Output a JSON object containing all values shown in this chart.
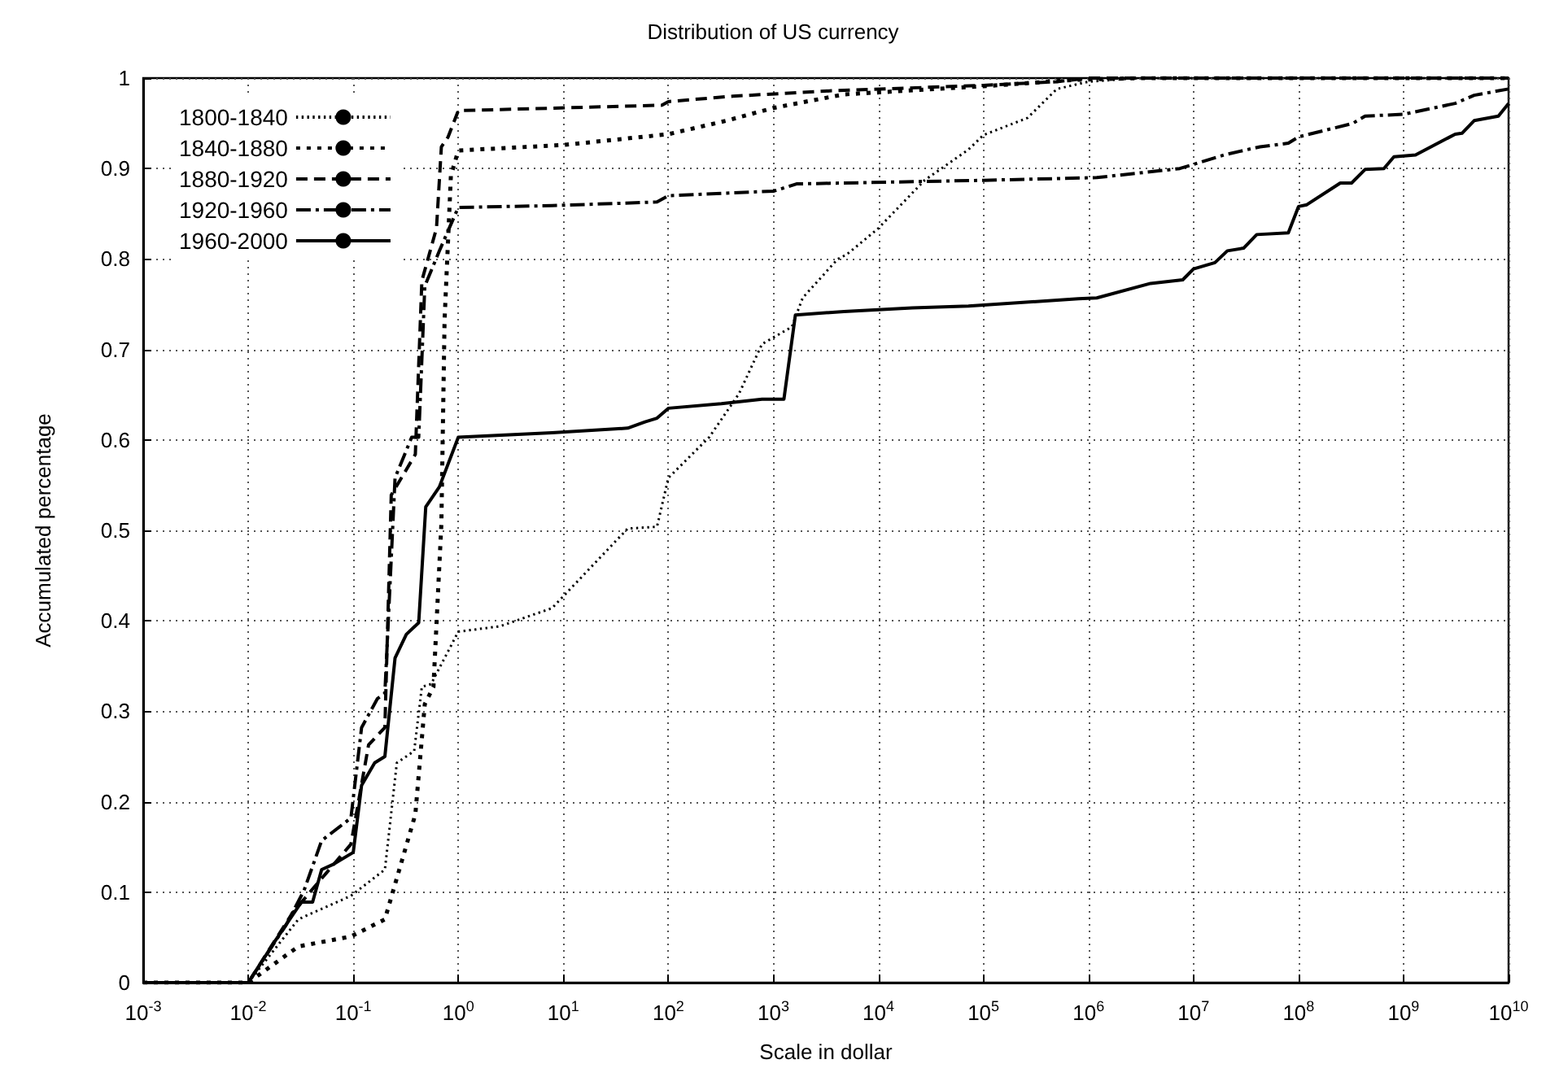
{
  "chart_data": {
    "type": "line",
    "title": "Distribution of US currency",
    "xlabel": "Scale in dollar",
    "ylabel": "Accumulated percentage",
    "log": "x",
    "grid": true,
    "legend": "top left",
    "marker": "none",
    "xlim": [
      0.001,
      10000000000
    ],
    "ylim": [
      0,
      1
    ],
    "xticks": [
      {
        "value": 0.001,
        "label": "10$^{-3}$"
      },
      {
        "value": 0.01,
        "label": "10$^{-2}$"
      },
      {
        "value": 0.1,
        "label": "10$^{-1}$"
      },
      {
        "value": 1,
        "label": "10$^{0}$"
      },
      {
        "value": 10,
        "label": "10$^{1}$"
      },
      {
        "value": 100,
        "label": "10$^{2}$"
      },
      {
        "value": 1000,
        "label": "10$^{3}$"
      },
      {
        "value": 10000,
        "label": "10$^{4}$"
      },
      {
        "value": 100000,
        "label": "10$^{5}$"
      },
      {
        "value": 1000000,
        "label": "10$^{6}$"
      },
      {
        "value": 10000000,
        "label": "10$^{7}$"
      },
      {
        "value": 100000000,
        "label": "10$^{8}$"
      },
      {
        "value": 1000000000,
        "label": "10$^{9}$"
      },
      {
        "value": 10000000000,
        "label": "10$^{10}$"
      }
    ],
    "yticks": [
      0,
      0.1,
      0.2,
      0.3,
      0.4,
      0.5,
      0.6,
      0.7,
      0.8,
      0.9,
      1
    ],
    "series": [
      {
        "name": "1800-1840",
        "color": "#000000",
        "line_style": "dotted",
        "x": [
          0.001,
          0.01,
          0.03,
          0.095,
          0.2,
          0.26,
          0.38,
          0.45,
          0.55,
          1.0,
          2.5,
          7.8,
          41,
          78,
          100,
          245,
          470,
          780,
          1500,
          1900,
          4100,
          5000,
          10000,
          27500,
          72000,
          100000,
          263000,
          500000,
          1000000,
          3000000,
          10000000000
        ],
        "values": [
          0,
          0,
          0.07,
          0.096,
          0.125,
          0.243,
          0.256,
          0.327,
          0.33,
          0.388,
          0.394,
          0.414,
          0.502,
          0.504,
          0.558,
          0.603,
          0.651,
          0.706,
          0.725,
          0.757,
          0.8,
          0.805,
          0.834,
          0.887,
          0.921,
          0.937,
          0.956,
          0.988,
          0.996,
          1,
          1
        ]
      },
      {
        "name": "1840-1880",
        "color": "#000000",
        "line_style": "loosely dotted",
        "x": [
          0.001,
          0.01,
          0.03,
          0.095,
          0.2,
          0.39,
          0.48,
          0.58,
          0.69,
          0.74,
          0.85,
          1,
          10,
          100,
          360,
          1000,
          4700,
          100000,
          720000,
          3000000,
          10000000000
        ],
        "values": [
          0,
          0,
          0.04,
          0.051,
          0.07,
          0.186,
          0.308,
          0.327,
          0.507,
          0.732,
          0.892,
          0.92,
          0.926,
          0.938,
          0.953,
          0.967,
          0.982,
          0.991,
          0.998,
          1,
          1
        ]
      },
      {
        "name": "1880-1920",
        "color": "#000000",
        "line_style": "dashed",
        "x": [
          0.001,
          0.01,
          0.026,
          0.04,
          0.095,
          0.14,
          0.2,
          0.23,
          0.39,
          0.45,
          0.62,
          0.69,
          0.8,
          1,
          87,
          100,
          410,
          3600,
          100000,
          500000,
          1000000,
          10000000000
        ],
        "values": [
          0,
          0,
          0.076,
          0.102,
          0.153,
          0.263,
          0.282,
          0.539,
          0.584,
          0.776,
          0.834,
          0.924,
          0.935,
          0.964,
          0.97,
          0.974,
          0.98,
          0.986,
          0.992,
          0.996,
          1,
          1
        ]
      },
      {
        "name": "1920-1960",
        "color": "#000000",
        "line_style": "dashdot",
        "x": [
          0.001,
          0.01,
          0.023,
          0.034,
          0.05,
          0.095,
          0.12,
          0.17,
          0.2,
          0.25,
          0.36,
          0.42,
          0.48,
          0.66,
          1,
          7.8,
          78,
          100,
          1000,
          1660,
          100000,
          1200000,
          7400000,
          19500000,
          30000000,
          43000000,
          80000000,
          100000000,
          330000000,
          430000000,
          1000000000,
          3100000000,
          4700000000,
          10000000000
        ],
        "values": [
          0,
          0,
          0.064,
          0.102,
          0.157,
          0.182,
          0.282,
          0.314,
          0.32,
          0.558,
          0.603,
          0.603,
          0.77,
          0.809,
          0.857,
          0.859,
          0.863,
          0.87,
          0.875,
          0.883,
          0.887,
          0.89,
          0.9,
          0.915,
          0.92,
          0.924,
          0.928,
          0.935,
          0.95,
          0.958,
          0.96,
          0.972,
          0.981,
          0.988
        ]
      },
      {
        "name": "1960-2000",
        "color": "#000000",
        "line_style": "solid",
        "x": [
          0.001,
          0.01,
          0.018,
          0.032,
          0.041,
          0.05,
          0.065,
          0.1,
          0.12,
          0.16,
          0.2,
          0.25,
          0.32,
          0.42,
          0.49,
          0.66,
          1,
          7.8,
          41,
          60,
          78,
          100,
          320,
          780,
          1260,
          1620,
          4700,
          21000,
          72000,
          800000,
          1200000,
          3900000,
          7900000,
          10000000,
          16000000,
          21000000,
          30000000,
          40000000,
          80000000,
          100000000,
          120000000,
          250000000,
          320000000,
          430000000,
          650000000,
          810000000,
          1300000000,
          3100000000,
          3600000000,
          4700000000,
          8000000000,
          10000000000
        ],
        "values": [
          0,
          0,
          0.046,
          0.089,
          0.089,
          0.125,
          0.131,
          0.144,
          0.218,
          0.243,
          0.25,
          0.359,
          0.385,
          0.398,
          0.526,
          0.548,
          0.603,
          0.608,
          0.613,
          0.62,
          0.624,
          0.635,
          0.64,
          0.645,
          0.645,
          0.738,
          0.742,
          0.746,
          0.748,
          0.756,
          0.757,
          0.773,
          0.777,
          0.789,
          0.796,
          0.809,
          0.812,
          0.827,
          0.829,
          0.858,
          0.86,
          0.884,
          0.884,
          0.899,
          0.9,
          0.913,
          0.915,
          0.938,
          0.939,
          0.953,
          0.958,
          0.972
        ]
      }
    ]
  }
}
